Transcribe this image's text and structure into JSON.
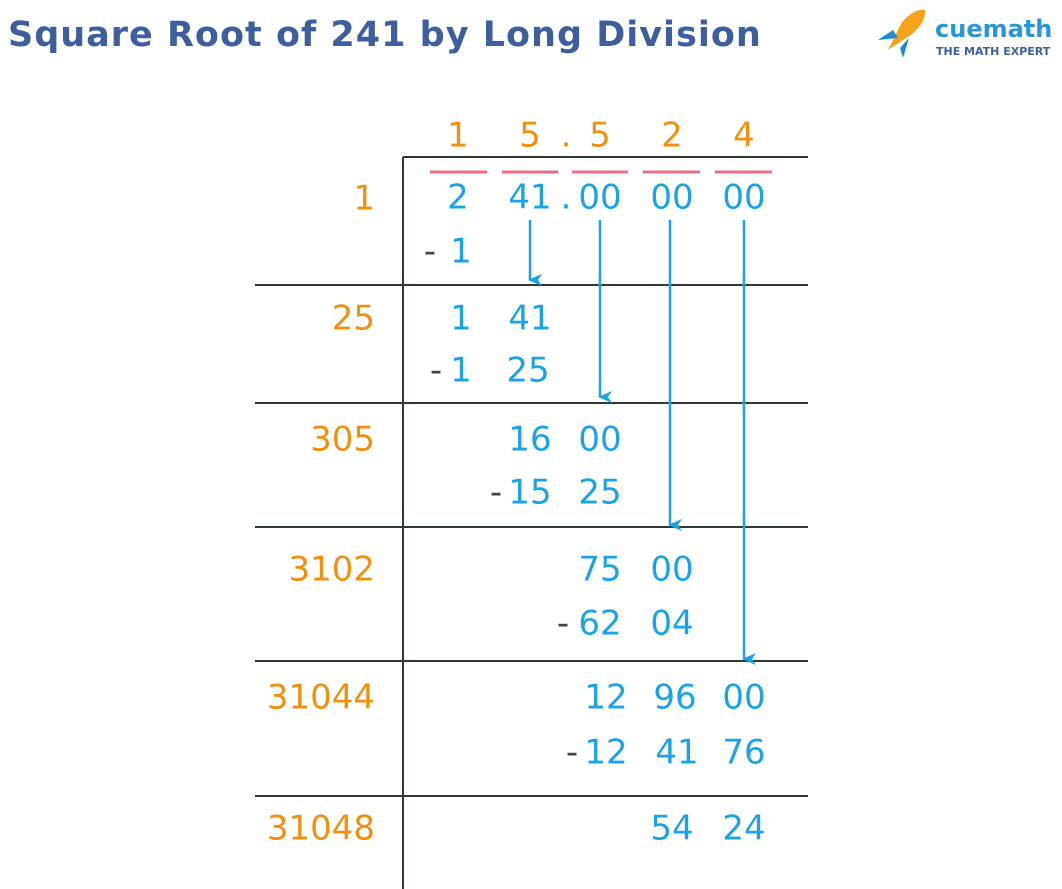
{
  "header": {
    "title": "Square Root of 241 by Long Division",
    "logo": {
      "brand": "cuemath",
      "tagline": "THE MATH EXPERT"
    }
  },
  "quotient": [
    "1",
    "5",
    ".",
    "5",
    "2",
    "4"
  ],
  "dividend": [
    "2",
    "41",
    ".",
    "00",
    "00",
    "00"
  ],
  "steps": [
    {
      "divisor": "1",
      "subtract": [
        "-",
        "1"
      ]
    },
    {
      "divisor": "25",
      "remainder": [
        "1",
        "41"
      ],
      "subtract": [
        "-",
        "1",
        "25"
      ]
    },
    {
      "divisor": "305",
      "remainder": [
        "16",
        "00"
      ],
      "subtract": [
        "-",
        "15",
        "25"
      ]
    },
    {
      "divisor": "3102",
      "remainder": [
        "75",
        "00"
      ],
      "subtract": [
        "-",
        "62",
        "04"
      ]
    },
    {
      "divisor": "31044",
      "remainder": [
        "12",
        "96",
        "00"
      ],
      "subtract": [
        "-",
        "12",
        "41",
        "76"
      ]
    },
    {
      "divisor": "31048",
      "remainder": [
        "54",
        "24"
      ]
    }
  ]
}
